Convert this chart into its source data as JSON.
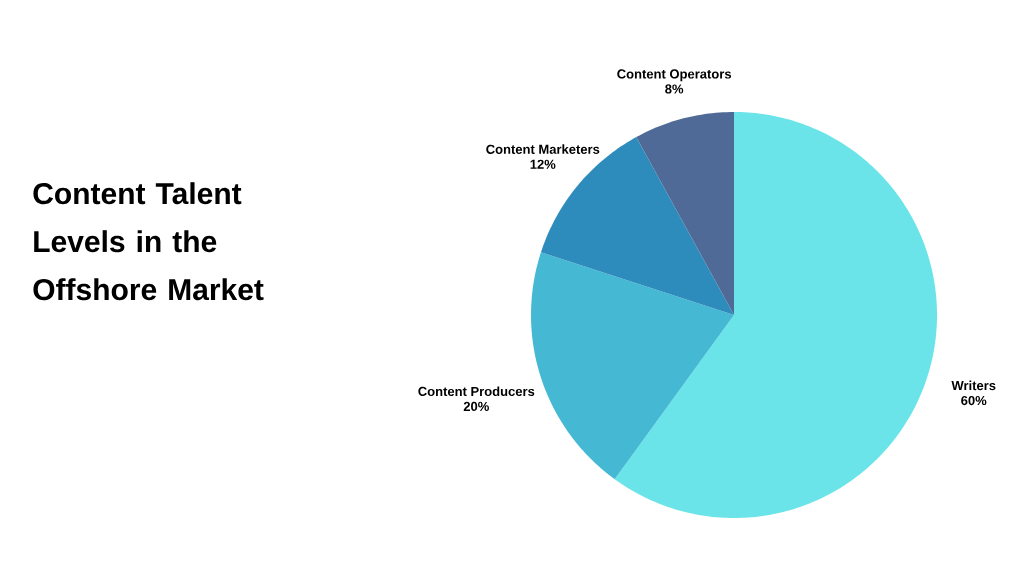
{
  "chart_data": {
    "type": "pie",
    "title": "Content Talent Levels in the Offshore Market",
    "categories": [
      "Writers",
      "Content Producers",
      "Content Marketers",
      "Content Operators"
    ],
    "values": [
      60,
      20,
      12,
      8
    ],
    "value_labels": [
      "60%",
      "20%",
      "12%",
      "8%"
    ],
    "colors": [
      "#6ae4e8",
      "#45b9d4",
      "#2e8cbc",
      "#4f6a96"
    ]
  }
}
